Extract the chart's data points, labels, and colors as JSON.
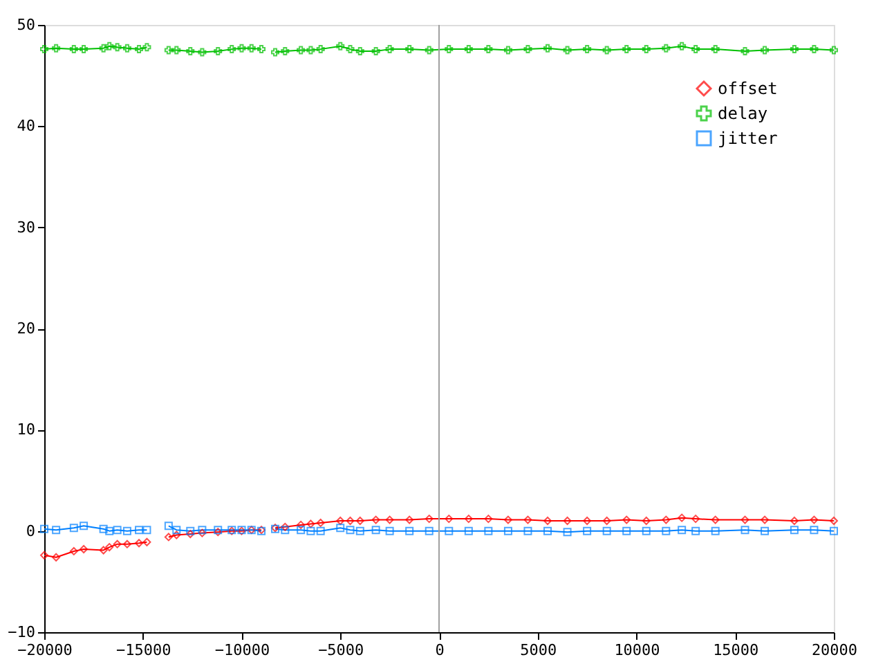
{
  "chart_data": {
    "type": "line",
    "x": [
      -20000,
      -19400,
      -18500,
      -18000,
      -17000,
      -16700,
      -16300,
      -15800,
      -15200,
      -14800,
      -14300,
      -13700,
      -13300,
      -12600,
      -12000,
      -11200,
      -10500,
      -10000,
      -9500,
      -9000,
      -8700,
      -8300,
      -7800,
      -7000,
      -6500,
      -6000,
      -5000,
      -4500,
      -4000,
      -3200,
      -2500,
      -1500,
      -500,
      500,
      1500,
      2500,
      3500,
      4500,
      5500,
      6500,
      7500,
      8500,
      9500,
      10500,
      11500,
      12300,
      13000,
      14000,
      15500,
      16500,
      18000,
      19000,
      20000
    ],
    "series": [
      {
        "name": "offset",
        "color": "#ff0000",
        "marker": "diamond",
        "values": [
          -2.4,
          -2.6,
          -2.0,
          -1.8,
          -1.9,
          -1.6,
          -1.3,
          -1.3,
          -1.2,
          -1.1,
          null,
          -0.6,
          -0.4,
          -0.3,
          -0.2,
          -0.1,
          0.0,
          0.0,
          0.1,
          0.1,
          null,
          0.3,
          0.4,
          0.6,
          0.7,
          0.8,
          1.0,
          1.0,
          1.0,
          1.1,
          1.1,
          1.1,
          1.2,
          1.2,
          1.2,
          1.2,
          1.1,
          1.1,
          1.0,
          1.0,
          1.0,
          1.0,
          1.1,
          1.0,
          1.1,
          1.3,
          1.2,
          1.1,
          1.1,
          1.1,
          1.0,
          1.1,
          1.0
        ]
      },
      {
        "name": "delay",
        "color": "#00c000",
        "marker": "cross",
        "values": [
          47.6,
          47.7,
          47.6,
          47.6,
          47.7,
          47.9,
          47.8,
          47.7,
          47.6,
          47.8,
          null,
          47.5,
          47.5,
          47.4,
          47.3,
          47.4,
          47.6,
          47.7,
          47.7,
          47.6,
          null,
          47.3,
          47.4,
          47.5,
          47.5,
          47.6,
          47.9,
          47.6,
          47.4,
          47.4,
          47.6,
          47.6,
          47.5,
          47.6,
          47.6,
          47.6,
          47.5,
          47.6,
          47.7,
          47.5,
          47.6,
          47.5,
          47.6,
          47.6,
          47.7,
          47.9,
          47.6,
          47.6,
          47.4,
          47.5,
          47.6,
          47.6,
          47.5
        ]
      },
      {
        "name": "jitter",
        "color": "#0080ff",
        "marker": "square",
        "values": [
          0.2,
          0.1,
          0.3,
          0.5,
          0.2,
          0.0,
          0.1,
          0.0,
          0.1,
          0.1,
          null,
          0.5,
          0.1,
          0.0,
          0.1,
          0.1,
          0.1,
          0.1,
          0.1,
          0.0,
          null,
          0.2,
          0.1,
          0.1,
          0.0,
          0.0,
          0.3,
          0.1,
          0.0,
          0.1,
          0.0,
          0.0,
          0.0,
          0.0,
          0.0,
          0.0,
          0.0,
          0.0,
          0.0,
          -0.1,
          0.0,
          0.0,
          0.0,
          0.0,
          0.0,
          0.1,
          0.0,
          0.0,
          0.1,
          0.0,
          0.1,
          0.1,
          0.0
        ]
      }
    ],
    "xlim": [
      -20000,
      20000
    ],
    "xticks": [
      -20000,
      -15000,
      -10000,
      -5000,
      0,
      5000,
      10000,
      15000,
      20000
    ],
    "ylim": [
      -10,
      50
    ],
    "yticks": [
      -10,
      0,
      10,
      20,
      30,
      40,
      50
    ],
    "ref_lines": [
      {
        "axis": "x",
        "value": 0,
        "color": "#a0a0a0"
      }
    ],
    "grid": false,
    "legend": "top right",
    "line_style": "solid"
  }
}
